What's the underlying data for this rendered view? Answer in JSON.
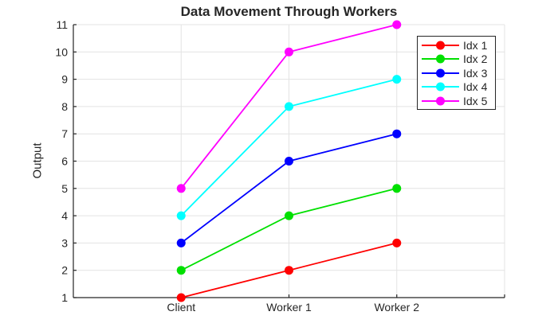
{
  "figure": {
    "title": "Data Movement Through Workers",
    "ylabel": "Output"
  },
  "chart_data": {
    "type": "line",
    "title": "Data Movement Through Workers",
    "xlabel": "",
    "ylabel": "Output",
    "categories": [
      "Client",
      "Worker 1",
      "Worker 2"
    ],
    "yticks": [
      1,
      2,
      3,
      4,
      5,
      6,
      7,
      8,
      9,
      10,
      11
    ],
    "ylim": [
      1,
      11
    ],
    "grid": true,
    "legend_position": "top-right",
    "legend_entries": [
      "Idx 1",
      "Idx 2",
      "Idx 3",
      "Idx 4",
      "Idx 5"
    ],
    "series": [
      {
        "name": "Idx 1",
        "color": "#ff0000",
        "marker": "circle",
        "values": [
          1,
          2,
          3
        ]
      },
      {
        "name": "Idx 2",
        "color": "#00e000",
        "marker": "circle",
        "values": [
          2,
          4,
          5
        ]
      },
      {
        "name": "Idx 3",
        "color": "#0000ff",
        "marker": "circle",
        "values": [
          3,
          6,
          7
        ]
      },
      {
        "name": "Idx 4",
        "color": "#00ffff",
        "marker": "circle",
        "values": [
          4,
          8,
          9
        ]
      },
      {
        "name": "Idx 5",
        "color": "#ff00ff",
        "marker": "circle",
        "values": [
          5,
          10,
          11
        ]
      }
    ],
    "style": {
      "axis_color": "#262626",
      "grid_color": "#e3e3e3",
      "background": "#ffffff"
    }
  }
}
